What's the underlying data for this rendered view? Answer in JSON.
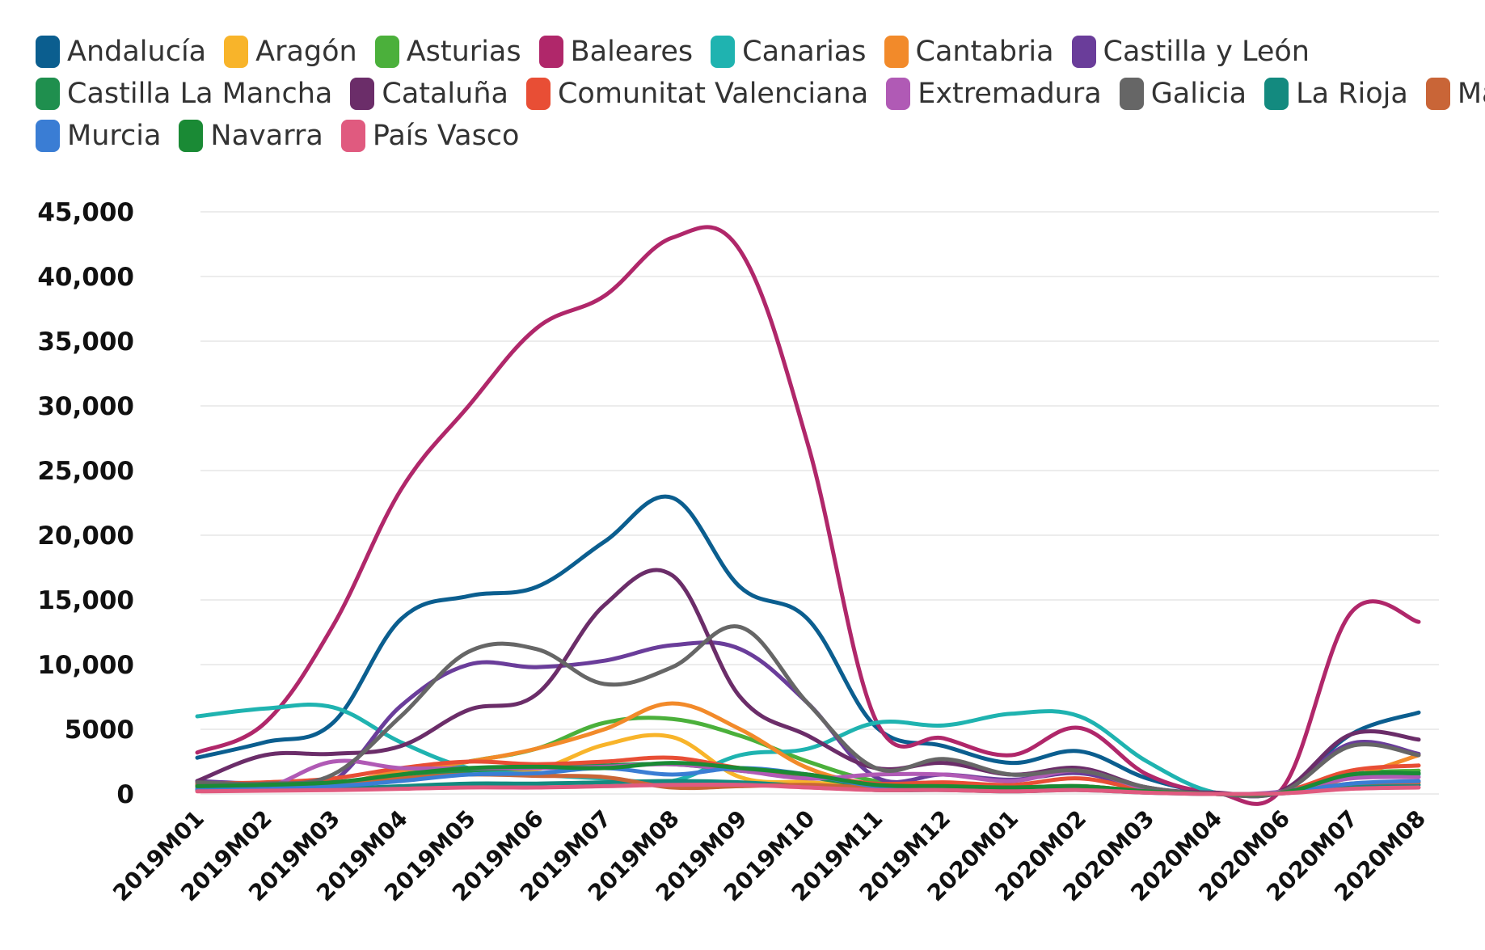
{
  "chart_data": {
    "type": "line",
    "title": "",
    "xlabel": "",
    "ylabel": "",
    "ylim": [
      0,
      45000
    ],
    "grid": true,
    "legend_position": "top",
    "yticks": [
      {
        "value": 0,
        "label": "0"
      },
      {
        "value": 5000,
        "label": "5000"
      },
      {
        "value": 10000,
        "label": "10,000"
      },
      {
        "value": 15000,
        "label": "15,000"
      },
      {
        "value": 20000,
        "label": "20,000"
      },
      {
        "value": 25000,
        "label": "25,000"
      },
      {
        "value": 30000,
        "label": "30,000"
      },
      {
        "value": 35000,
        "label": "35,000"
      },
      {
        "value": 40000,
        "label": "40,000"
      },
      {
        "value": 45000,
        "label": "45,000"
      }
    ],
    "categories": [
      "2019M01",
      "2019M02",
      "2019M03",
      "2019M04",
      "2019M05",
      "2019M06",
      "2019M07",
      "2019M08",
      "2019M09",
      "2019M10",
      "2019M11",
      "2019M12",
      "2020M01",
      "2020M02",
      "2020M03",
      "2020M04",
      "2020M06",
      "2020M07",
      "2020M08"
    ],
    "series": [
      {
        "name": "Andalucía",
        "color": "#0b5e8f",
        "values": [
          2800,
          4000,
          5500,
          13500,
          15300,
          16000,
          19500,
          22900,
          16000,
          13500,
          5200,
          3700,
          2400,
          3300,
          1200,
          100,
          300,
          4600,
          6300
        ]
      },
      {
        "name": "Aragón",
        "color": "#f8b42a",
        "values": [
          500,
          600,
          800,
          1500,
          2000,
          1900,
          3800,
          4400,
          1300,
          900,
          600,
          500,
          400,
          500,
          200,
          0,
          100,
          1300,
          1500
        ]
      },
      {
        "name": "Asturias",
        "color": "#4bb03b",
        "values": [
          600,
          700,
          900,
          1500,
          2500,
          3500,
          5500,
          5800,
          4500,
          2500,
          1000,
          700,
          500,
          600,
          200,
          0,
          100,
          1500,
          1800
        ]
      },
      {
        "name": "Baleares",
        "color": "#b0276a",
        "values": [
          3200,
          5500,
          13000,
          23500,
          30000,
          36000,
          38500,
          43000,
          42000,
          27000,
          5700,
          4300,
          3000,
          5100,
          1500,
          100,
          500,
          14000,
          13300
        ]
      },
      {
        "name": "Canarias",
        "color": "#1fb3b0",
        "values": [
          6000,
          6600,
          6700,
          4000,
          2000,
          1500,
          1200,
          1000,
          3000,
          3500,
          5500,
          5300,
          6200,
          6000,
          2500,
          100,
          200,
          1500,
          1500
        ]
      },
      {
        "name": "Cantabria",
        "color": "#f28a2a",
        "values": [
          400,
          500,
          700,
          1800,
          2500,
          3500,
          5000,
          7000,
          5000,
          2000,
          700,
          500,
          400,
          500,
          200,
          0,
          100,
          1300,
          3000
        ]
      },
      {
        "name": "Castilla y León",
        "color": "#6a3d9a",
        "values": [
          1000,
          800,
          1000,
          6800,
          10000,
          9800,
          10300,
          11500,
          11200,
          7000,
          1300,
          1500,
          1100,
          1600,
          400,
          0,
          200,
          3900,
          3100
        ]
      },
      {
        "name": "Castilla  La Mancha",
        "color": "#1f8f4e",
        "values": [
          700,
          700,
          800,
          1200,
          1800,
          2000,
          2200,
          2300,
          1800,
          1300,
          600,
          500,
          400,
          500,
          200,
          0,
          100,
          1400,
          1600
        ]
      },
      {
        "name": "Cataluña",
        "color": "#6b2d69",
        "values": [
          1000,
          3000,
          3100,
          3700,
          6500,
          7700,
          14600,
          16900,
          7500,
          4500,
          2000,
          2400,
          1500,
          2000,
          500,
          100,
          300,
          4600,
          4200
        ]
      },
      {
        "name": "Comunitat Valenciana",
        "color": "#e84e35",
        "values": [
          800,
          900,
          1200,
          2000,
          2500,
          2300,
          2500,
          2800,
          2000,
          1500,
          800,
          900,
          700,
          1200,
          300,
          0,
          200,
          1800,
          2200
        ]
      },
      {
        "name": "Extremadura",
        "color": "#b05ab5",
        "values": [
          400,
          500,
          2500,
          2000,
          2000,
          2000,
          2100,
          2300,
          1800,
          1200,
          1500,
          1500,
          1000,
          1800,
          400,
          0,
          200,
          1200,
          1300
        ]
      },
      {
        "name": "Galicia",
        "color": "#666666",
        "values": [
          900,
          800,
          1500,
          6000,
          11000,
          11200,
          8500,
          9800,
          12900,
          7000,
          2000,
          2700,
          1500,
          1800,
          500,
          0,
          200,
          3700,
          3000
        ]
      },
      {
        "name": "La Rioja",
        "color": "#138a7f",
        "values": [
          300,
          300,
          400,
          600,
          800,
          800,
          900,
          1000,
          900,
          600,
          300,
          300,
          200,
          300,
          100,
          0,
          50,
          600,
          700
        ]
      },
      {
        "name": "Madrid",
        "color": "#c96537",
        "values": [
          500,
          600,
          700,
          1200,
          1500,
          1400,
          1300,
          500,
          600,
          700,
          500,
          600,
          500,
          600,
          200,
          0,
          100,
          800,
          900
        ]
      },
      {
        "name": "Murcia",
        "color": "#3a7dd4",
        "values": [
          400,
          500,
          600,
          1000,
          1500,
          1600,
          2000,
          1500,
          2000,
          1500,
          600,
          500,
          400,
          500,
          200,
          0,
          100,
          800,
          1000
        ]
      },
      {
        "name": "Navarra",
        "color": "#1a8a35",
        "values": [
          600,
          700,
          900,
          1500,
          2000,
          2100,
          2000,
          2400,
          2000,
          1500,
          700,
          600,
          500,
          600,
          200,
          0,
          100,
          1500,
          1600
        ]
      },
      {
        "name": "País Vasco",
        "color": "#e05a7f",
        "values": [
          200,
          250,
          300,
          400,
          500,
          500,
          600,
          700,
          700,
          500,
          300,
          300,
          200,
          300,
          100,
          0,
          50,
          400,
          500
        ]
      }
    ]
  }
}
